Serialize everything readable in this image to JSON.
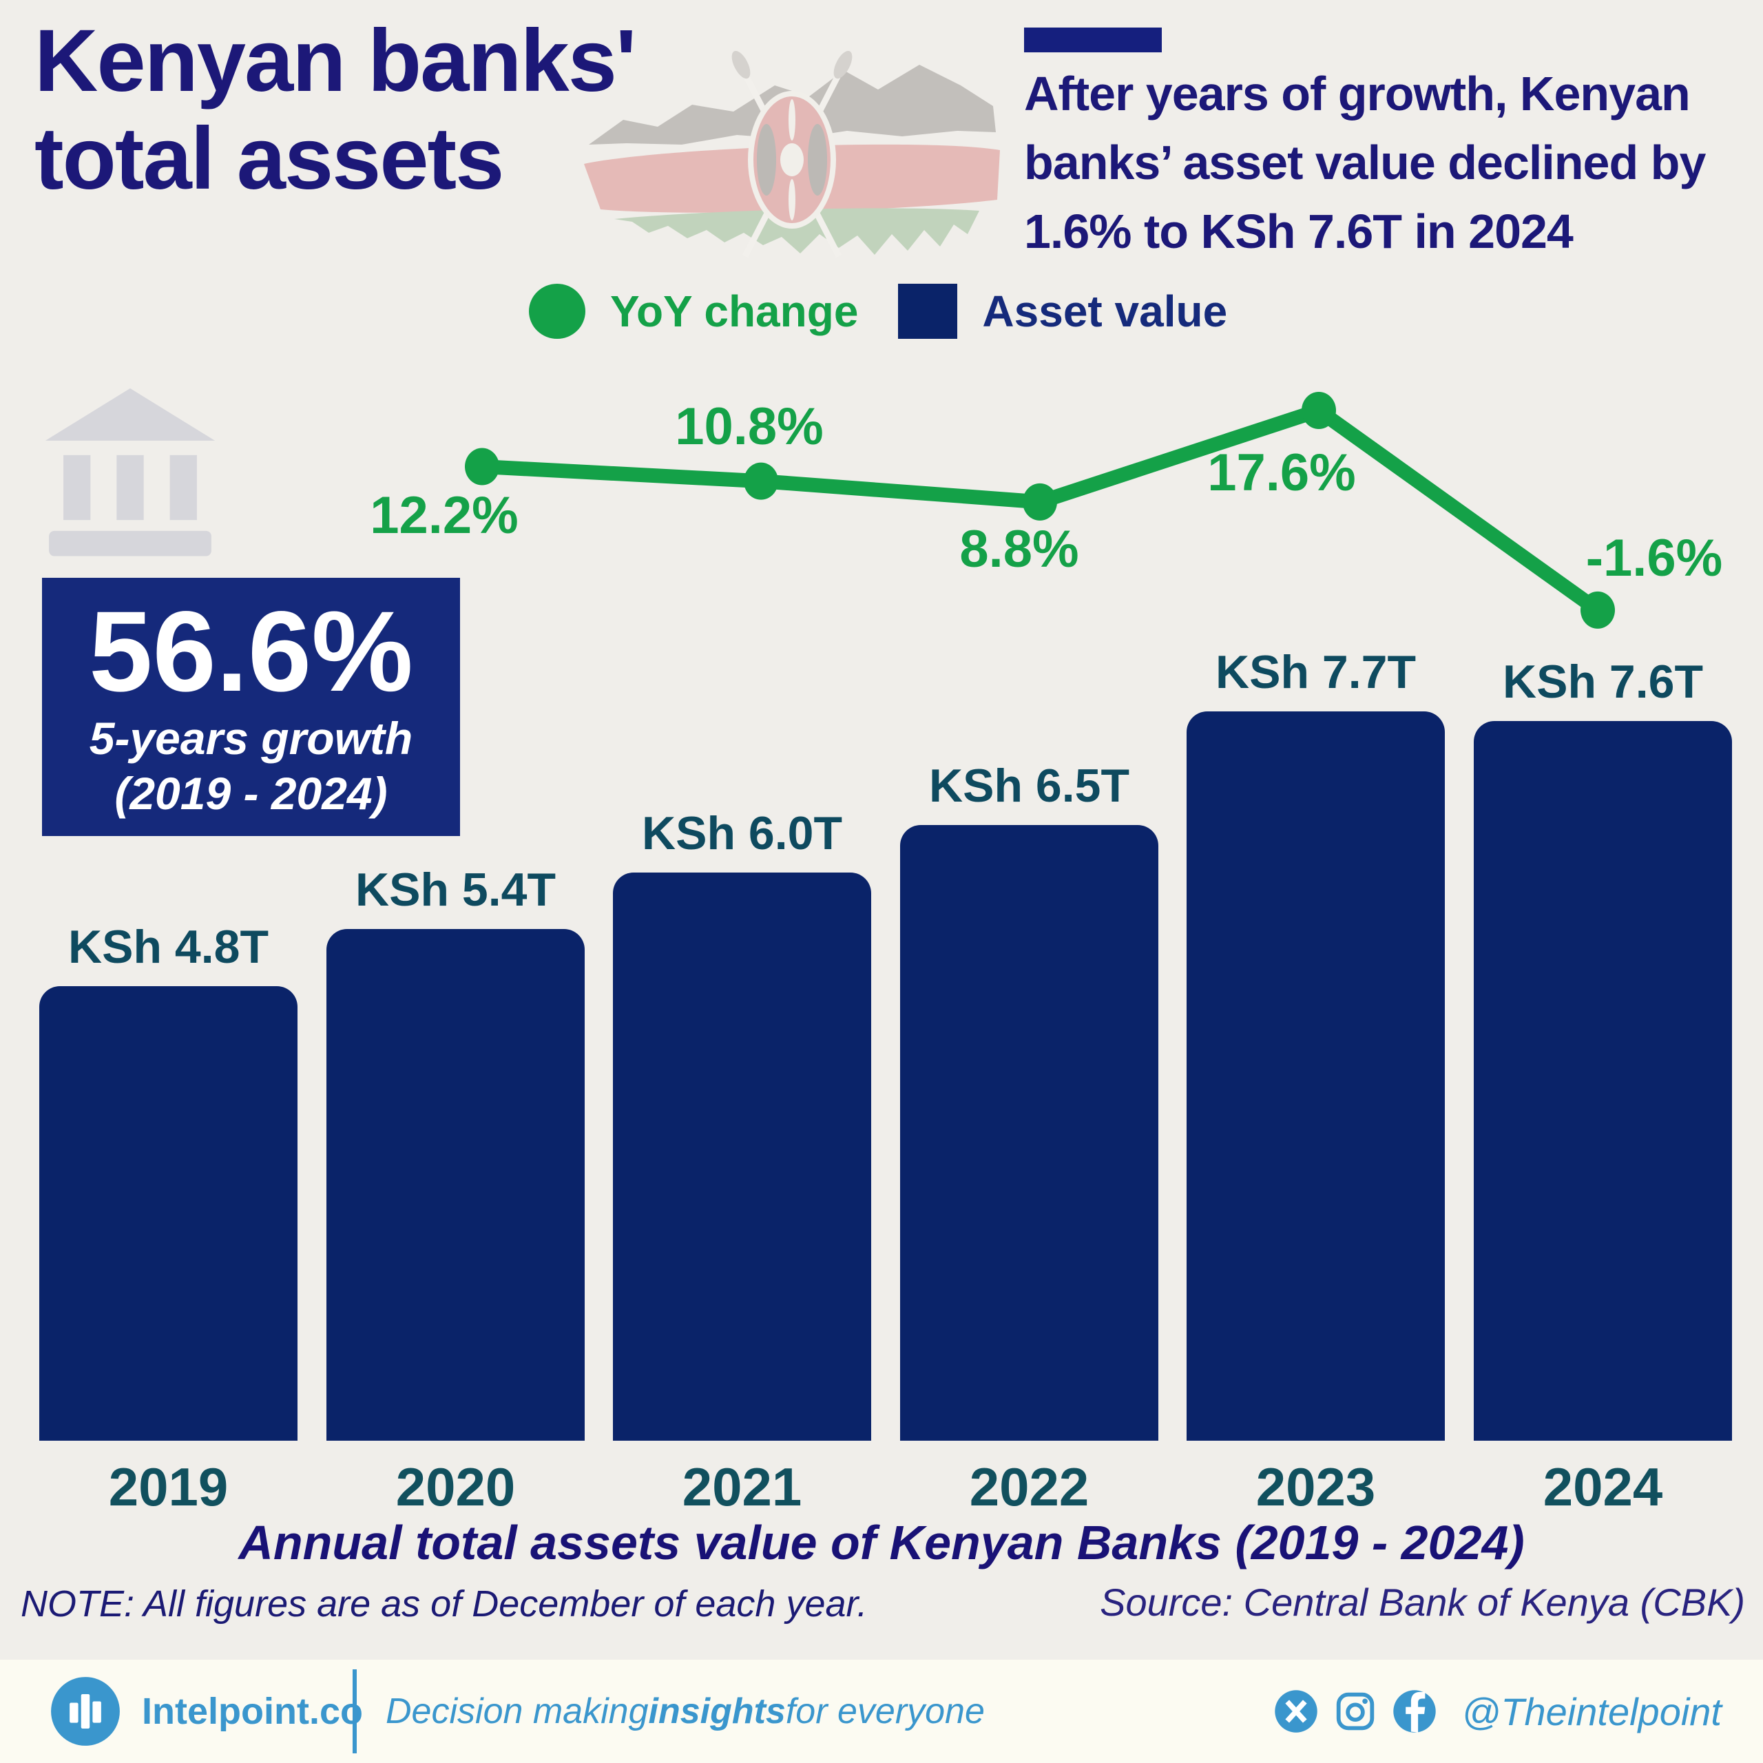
{
  "title": {
    "line1": "Kenyan banks'",
    "line2": "total assets"
  },
  "headline": {
    "lines": [
      "After years of growth, Kenyan",
      "banks’ asset value declined by",
      "1.6% to KSh 7.6T in 2024"
    ]
  },
  "legend": {
    "items": [
      {
        "label": "YoY change",
        "marker": "circle",
        "color": "#14a148"
      },
      {
        "label": "Asset value",
        "marker": "square",
        "color": "#0a2369"
      }
    ]
  },
  "growth_box": {
    "value": "56.6%",
    "line1": "5-years growth",
    "line2": "(2019 - 2024)"
  },
  "chart_data": {
    "type": "combo",
    "categories": [
      "2019",
      "2020",
      "2021",
      "2022",
      "2023",
      "2024"
    ],
    "series": [
      {
        "name": "Asset value",
        "type": "bar",
        "unit": "KSh trillion",
        "values": [
          4.8,
          5.4,
          6.0,
          6.5,
          7.7,
          7.6
        ],
        "labels": [
          "KSh 4.8T",
          "KSh 5.4T",
          "KSh 6.0T",
          "KSh 6.5T",
          "KSh 7.7T",
          "KSh 7.6T"
        ],
        "color": "#0a2369"
      },
      {
        "name": "YoY change",
        "type": "line",
        "unit": "percent",
        "x": [
          "2020",
          "2021",
          "2022",
          "2023",
          "2024"
        ],
        "values": [
          12.2,
          10.8,
          8.8,
          17.6,
          -1.6
        ],
        "labels": [
          "12.2%",
          "10.8%",
          "8.8%",
          "17.6%",
          "-1.6%"
        ],
        "color": "#14a148"
      }
    ],
    "title": "Annual total assets value of Kenyan Banks (2019 - 2024)",
    "xlabel": "",
    "ylabel": "",
    "legend_position": "top",
    "grid": false
  },
  "caption": "Annual total assets value of Kenyan Banks (2019 - 2024)",
  "note": "NOTE: All figures are as of December of each year.",
  "source": "Source: Central Bank of Kenya (CBK)",
  "footer": {
    "brand": "Intelpoint.co",
    "tagline": {
      "pre": "Decision making ",
      "bold": "insights",
      "post": " for everyone"
    },
    "handle": "@Theintelpoint"
  },
  "colors": {
    "background": "#f0eeea",
    "footer_background": "#fcfbf2",
    "navy_text": "#1c1878",
    "bar_navy": "#0a2369",
    "growth_box_navy": "#15297b",
    "teal_labels": "#0e4a5f",
    "green": "#14a148",
    "footer_blue": "#3a96cd"
  }
}
